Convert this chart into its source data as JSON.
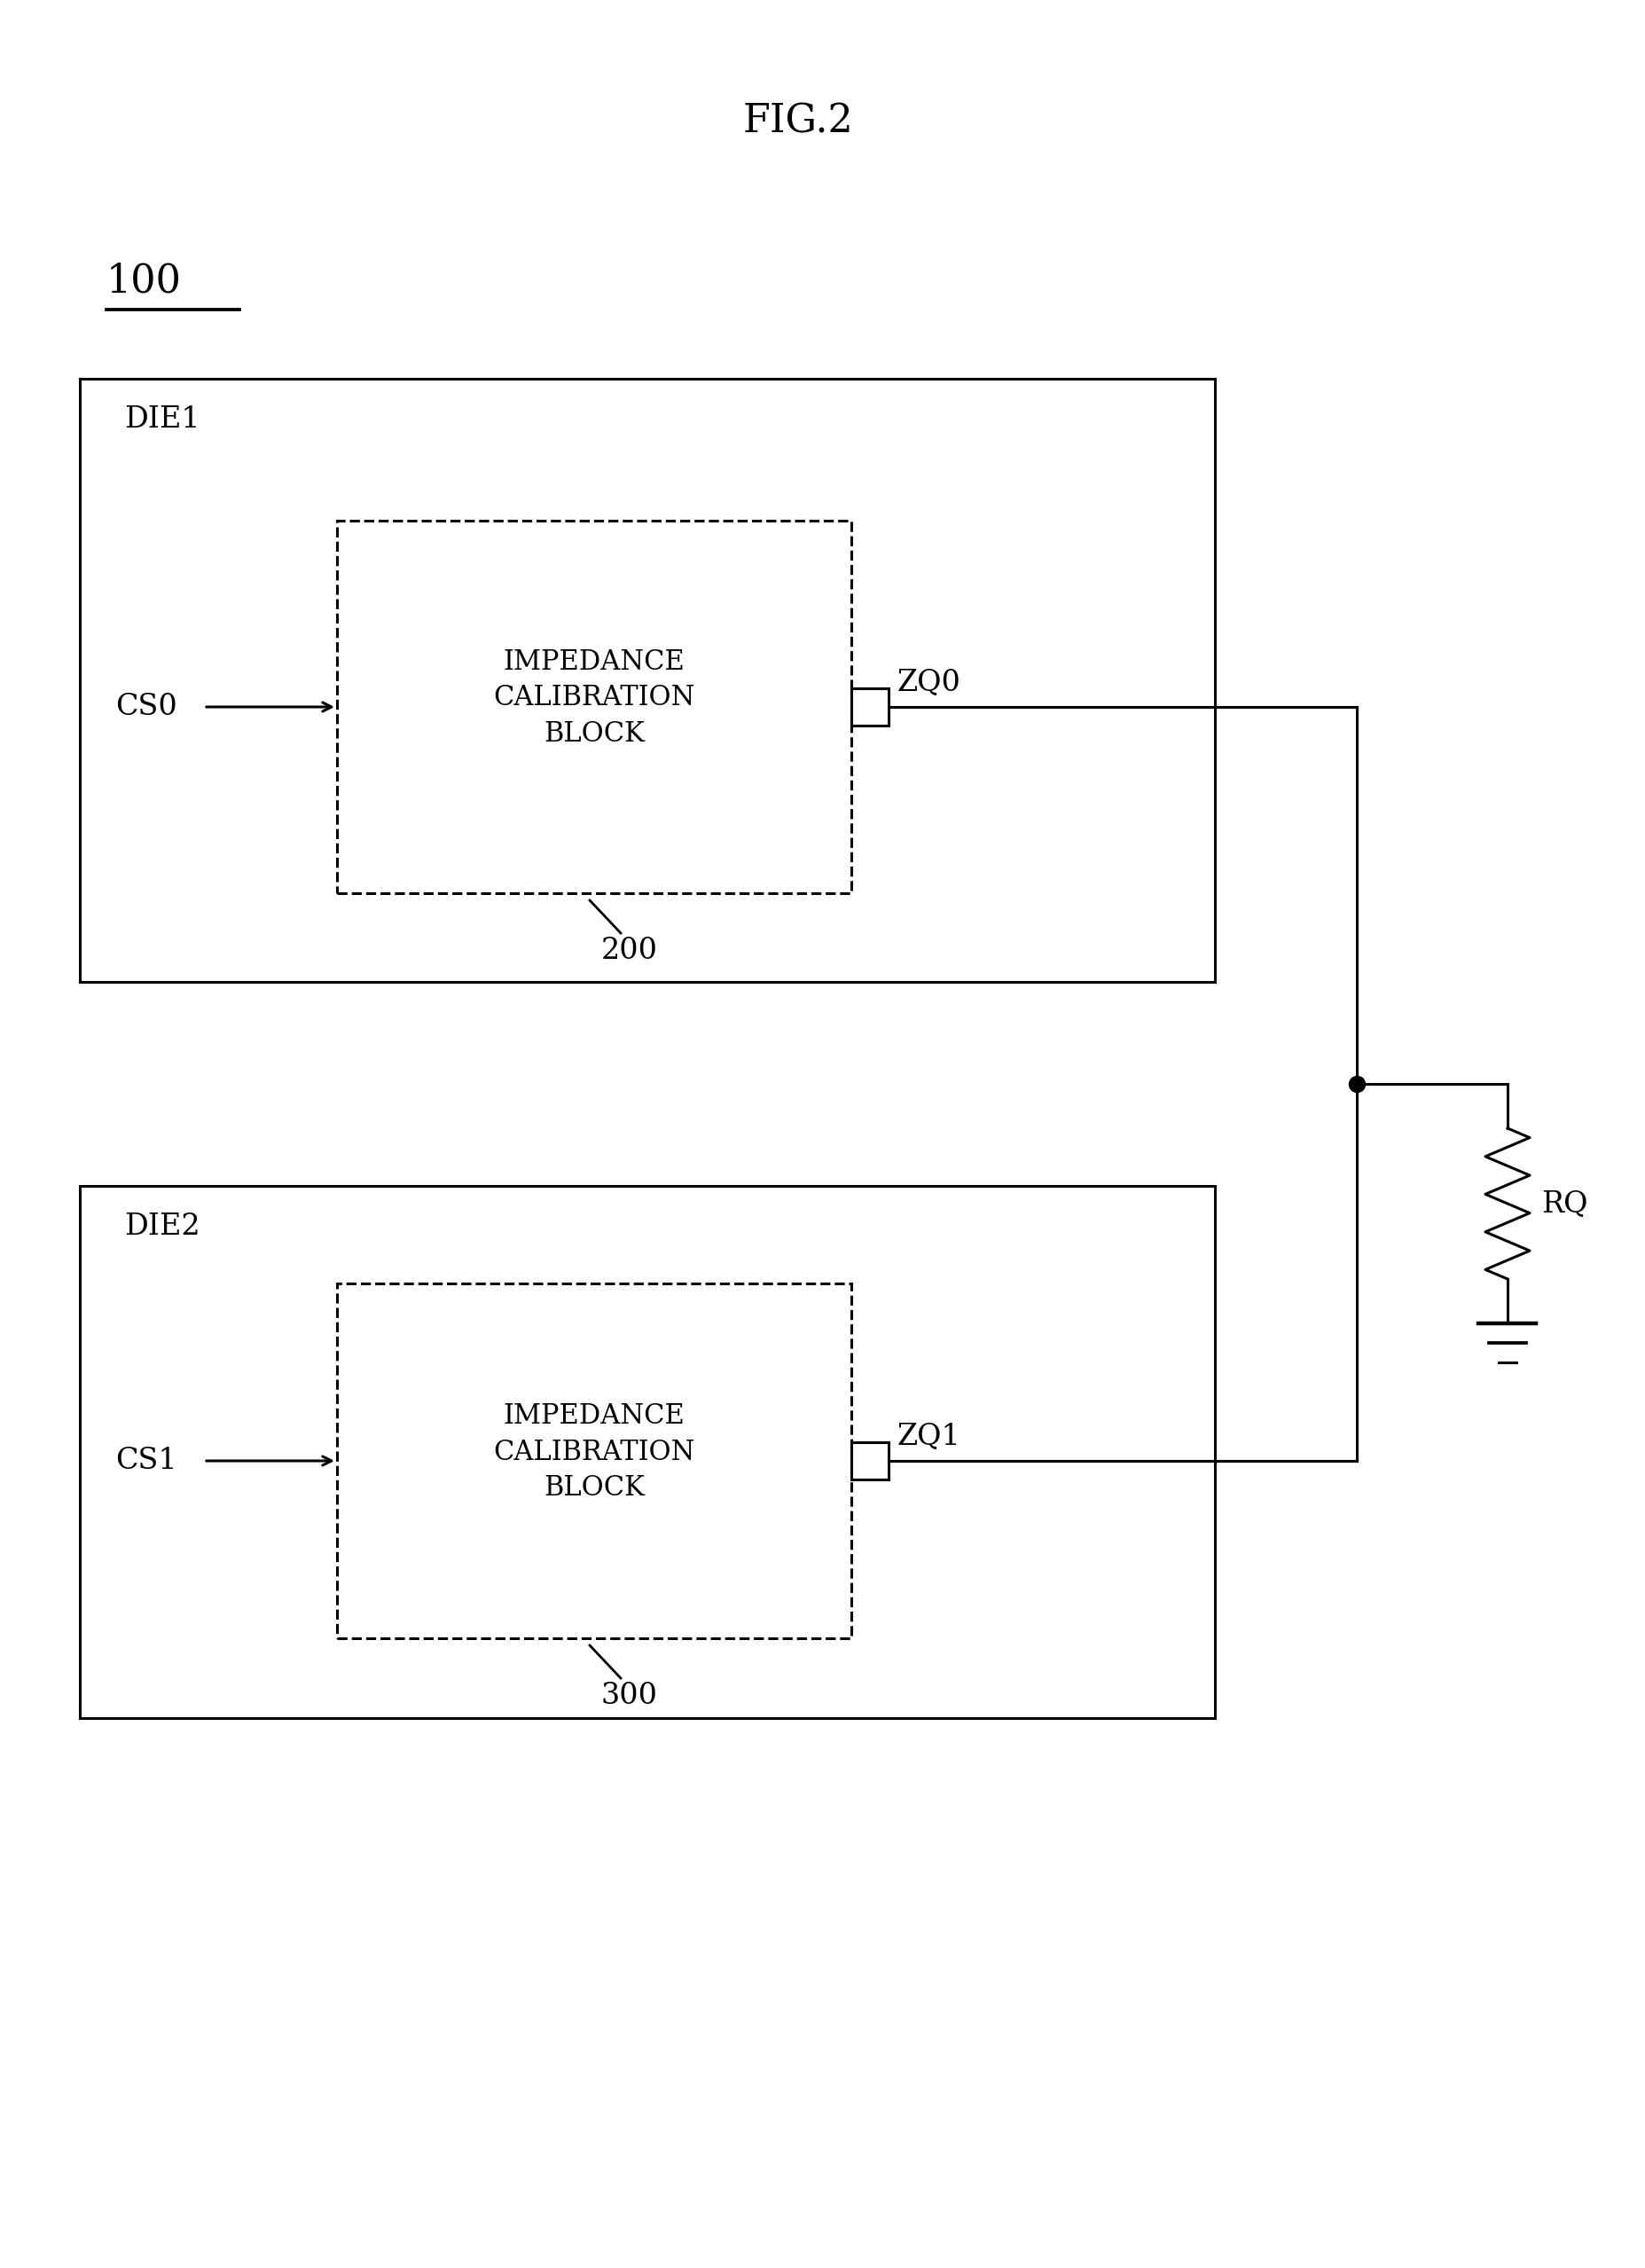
{
  "title": "FIG.2",
  "label_100": "100",
  "bg_color": "#ffffff",
  "line_color": "#000000",
  "die1_label": "DIE1",
  "die2_label": "DIE2",
  "block1_label": "IMPEDANCE\nCALIBRATION\nBLOCK",
  "block2_label": "IMPEDANCE\nCALIBRATION\nBLOCK",
  "block1_num": "200",
  "block2_num": "300",
  "cs0_label": "CS0",
  "cs1_label": "CS1",
  "zq0_label": "ZQ0",
  "zq1_label": "ZQ1",
  "rq_label": "RQ",
  "fig_fontsize": 32,
  "label_fontsize": 24,
  "block_fontsize": 22,
  "num_fontsize": 24
}
